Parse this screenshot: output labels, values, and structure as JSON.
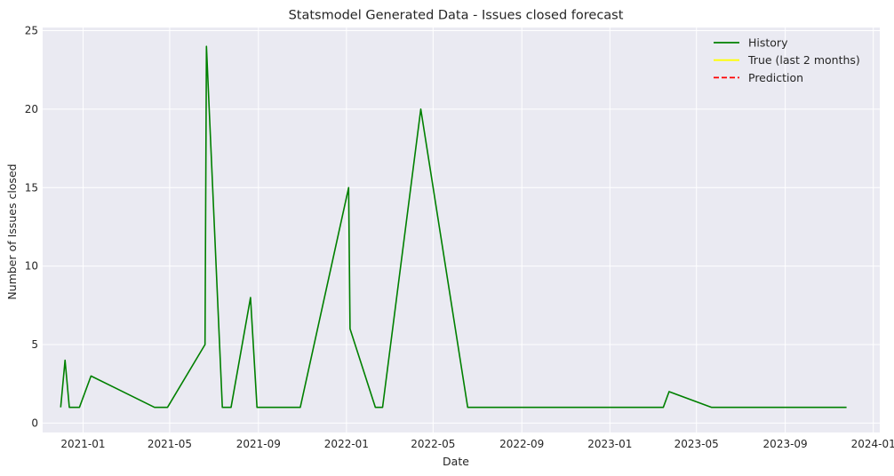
{
  "chart_data": {
    "type": "line",
    "title": "Statsmodel Generated Data - Issues closed forecast",
    "xlabel": "Date",
    "ylabel": "Number of Issues closed",
    "x_ticks": [
      "2021-01",
      "2021-05",
      "2021-09",
      "2022-01",
      "2022-05",
      "2022-09",
      "2023-01",
      "2023-05",
      "2023-09",
      "2024-01"
    ],
    "y_ticks": [
      0,
      5,
      10,
      15,
      20,
      25
    ],
    "xlim": [
      "2020-11-06",
      "2024-01-10"
    ],
    "ylim": [
      -0.6,
      25.2
    ],
    "grid": true,
    "legend_position": "top-right",
    "background": "#eaeaf2",
    "series": [
      {
        "name": "History",
        "color": "#008000",
        "dash": "solid",
        "x": [
          "2020-12-01",
          "2020-12-07",
          "2020-12-13",
          "2020-12-27",
          "2021-01-12",
          "2021-04-10",
          "2021-04-28",
          "2021-06-19",
          "2021-06-21",
          "2021-07-13",
          "2021-07-25",
          "2021-08-21",
          "2021-08-30",
          "2021-10-29",
          "2022-01-04",
          "2022-01-06",
          "2022-02-10",
          "2022-02-20",
          "2022-04-14",
          "2022-06-18",
          "2023-03-16",
          "2023-03-24",
          "2023-05-22",
          "2023-11-25"
        ],
        "y": [
          1,
          4,
          1,
          1,
          3,
          1,
          1,
          5,
          24,
          1,
          1,
          8,
          1,
          1,
          15,
          6,
          1,
          1,
          20,
          1,
          1,
          2,
          1,
          1
        ]
      },
      {
        "name": "True (last 2 months)",
        "color": "#ffff00",
        "dash": "solid",
        "x": [],
        "y": []
      },
      {
        "name": "Prediction",
        "color": "#ff0000",
        "dash": "dashed",
        "x": [],
        "y": []
      }
    ]
  }
}
